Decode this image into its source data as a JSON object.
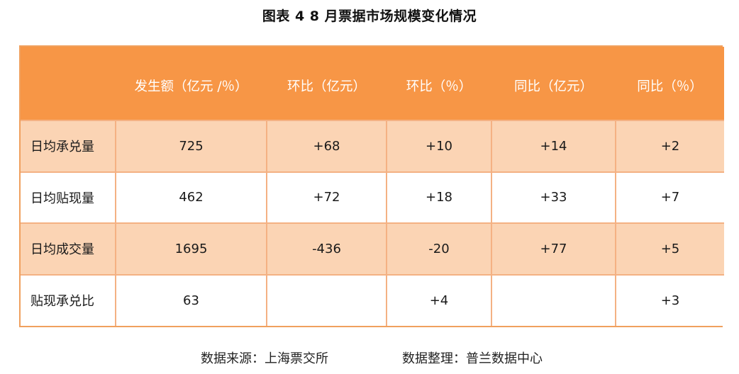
{
  "title": "图表 4   8 月票据市场规模变化情况",
  "table": {
    "headers": [
      "",
      "发生额（亿元 /％）",
      "环比（亿元）",
      "环比（％）",
      "同比（亿元）",
      "同比（％）"
    ],
    "rows": [
      {
        "label": "日均承兑量",
        "cells": [
          "725",
          "+68",
          "+10",
          "+14",
          "+2"
        ]
      },
      {
        "label": "日均贴现量",
        "cells": [
          "462",
          "+72",
          "+18",
          "+33",
          "+7"
        ]
      },
      {
        "label": "日均成交量",
        "cells": [
          "1695",
          "-436",
          "-20",
          "+77",
          "+5"
        ]
      },
      {
        "label": "贴现承兑比",
        "cells": [
          "63",
          "",
          "+4",
          "",
          "+3"
        ]
      }
    ]
  },
  "footer": {
    "source": "数据来源：上海票交所",
    "organizer": "数据整理：普兰数据中心"
  },
  "colors": {
    "header_bg": "#f79646",
    "band_bg": "#fbd4b4",
    "border": "#f4b183"
  }
}
